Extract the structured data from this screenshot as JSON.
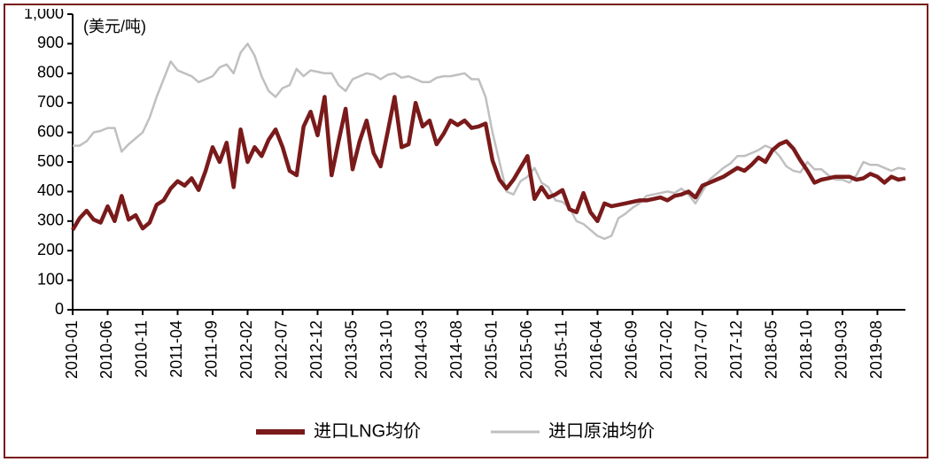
{
  "chart": {
    "type": "line",
    "unit_label": "(美元/吨)",
    "ylim": [
      0,
      1000
    ],
    "ytick_step": 100,
    "yticks": [
      "0",
      "100",
      "200",
      "300",
      "400",
      "500",
      "600",
      "700",
      "800",
      "900",
      "1,000"
    ],
    "xlabels": [
      "2010-01",
      "2010-06",
      "2010-11",
      "2011-04",
      "2011-09",
      "2012-02",
      "2012-07",
      "2012-12",
      "2013-05",
      "2013-10",
      "2014-03",
      "2014-08",
      "2015-01",
      "2015-06",
      "2015-11",
      "2016-04",
      "2016-09",
      "2017-02",
      "2017-07",
      "2017-12",
      "2018-05",
      "2018-10",
      "2019-03",
      "2019-08"
    ],
    "first_index": 0,
    "x_step": 5,
    "n_points": 120,
    "colors": {
      "series1": "#7a1a1a",
      "series2": "#c0c0c0",
      "axis": "#000000",
      "background": "#ffffff"
    },
    "line_widths": {
      "series1": 4.5,
      "series2": 2.5
    },
    "axis_width": 2,
    "tick_len": 6,
    "font_size_axis": 18,
    "font_size_legend": 20,
    "legend": {
      "series1": "进口LNG均价",
      "series2": "进口原油均价",
      "swatch_len": 55,
      "swatch_thick_s1": 6,
      "swatch_thick_s2": 3
    },
    "series1": [
      270,
      310,
      335,
      305,
      295,
      350,
      300,
      385,
      305,
      320,
      275,
      295,
      355,
      370,
      410,
      435,
      420,
      445,
      405,
      470,
      550,
      500,
      565,
      415,
      610,
      500,
      550,
      520,
      575,
      610,
      550,
      470,
      455,
      620,
      670,
      590,
      720,
      455,
      570,
      680,
      475,
      570,
      640,
      530,
      485,
      600,
      720,
      550,
      560,
      700,
      620,
      640,
      560,
      595,
      640,
      625,
      640,
      615,
      620,
      630,
      505,
      440,
      410,
      440,
      480,
      520,
      375,
      415,
      380,
      390,
      405,
      340,
      330,
      395,
      330,
      300,
      360,
      350,
      355,
      360,
      365,
      370,
      370,
      375,
      380,
      370,
      385,
      390,
      400,
      380,
      420,
      430,
      440,
      450,
      465,
      480,
      470,
      490,
      515,
      500,
      540,
      560,
      570,
      545,
      505,
      470,
      430,
      440,
      445,
      450,
      450,
      450,
      440,
      445,
      460,
      450,
      430,
      450,
      440,
      445
    ],
    "series2": [
      555,
      555,
      570,
      600,
      605,
      615,
      615,
      535,
      560,
      580,
      600,
      650,
      720,
      780,
      840,
      810,
      800,
      790,
      770,
      780,
      790,
      820,
      830,
      800,
      870,
      900,
      860,
      790,
      740,
      720,
      750,
      760,
      815,
      790,
      810,
      805,
      800,
      800,
      760,
      740,
      780,
      790,
      800,
      795,
      780,
      795,
      800,
      785,
      790,
      780,
      770,
      770,
      785,
      790,
      790,
      795,
      800,
      780,
      780,
      720,
      600,
      500,
      400,
      390,
      435,
      450,
      480,
      430,
      415,
      370,
      365,
      345,
      300,
      290,
      270,
      250,
      240,
      250,
      310,
      325,
      345,
      360,
      385,
      390,
      395,
      400,
      395,
      410,
      390,
      360,
      400,
      440,
      460,
      480,
      495,
      520,
      520,
      530,
      540,
      555,
      545,
      520,
      485,
      470,
      465,
      500,
      475,
      475,
      455,
      440,
      440,
      430,
      455,
      500,
      490,
      490,
      480,
      470,
      480,
      475
    ]
  }
}
